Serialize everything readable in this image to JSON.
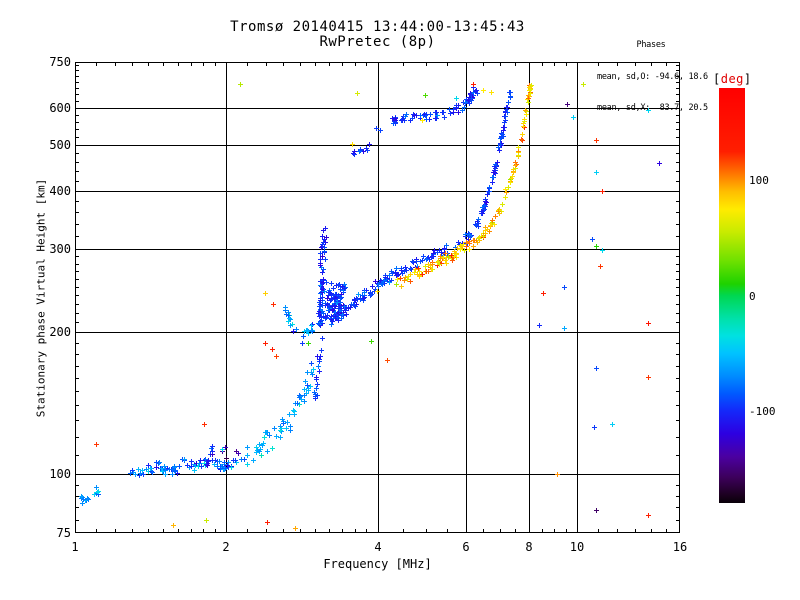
{
  "title": {
    "line1": "Tromsø 20140415 13:44:00-13:45:43",
    "line2": "RwPretec (8p)"
  },
  "annotation": {
    "header": "Phases",
    "line_o": "mean, sd,O: -94.6, 18.6",
    "line_x": "mean, sd,X:  83.7, 20.5"
  },
  "colorbar": {
    "bracket_open": "[",
    "unit": "deg",
    "bracket_close": "]",
    "unit_color": "#e00000",
    "vmax": 180,
    "vmin": -180,
    "ticks": [
      100,
      0,
      -100
    ]
  },
  "chart_data": {
    "type": "scatter",
    "title": "Tromsø 20140415 13:44:00-13:45:43 RwPretec (8p)",
    "xlabel": "Frequency [MHz]",
    "ylabel": "Stationary phase Virtual Height [km]",
    "x_axis": {
      "scale": "log",
      "range": [
        1,
        16
      ],
      "major_ticks": [
        1,
        2,
        4,
        6,
        8,
        10,
        16
      ],
      "minor_ticks": [
        1.1,
        1.2,
        1.3,
        1.4,
        1.5,
        1.6,
        1.7,
        1.8,
        1.9,
        2.2,
        2.4,
        2.6,
        2.8,
        3.0,
        3.2,
        3.4,
        3.6,
        3.8,
        4.5,
        5,
        5.5,
        6.5,
        7,
        7.5,
        8.5,
        9,
        9.5,
        11,
        12,
        13,
        14,
        15
      ],
      "gridlines": [
        2,
        4,
        6,
        8,
        10
      ]
    },
    "y_axis": {
      "scale": "log",
      "range": [
        75,
        750
      ],
      "major_ticks": [
        75,
        100,
        200,
        300,
        400,
        500,
        600,
        750
      ],
      "minor_ticks": [
        80,
        85,
        90,
        95,
        110,
        120,
        130,
        140,
        150,
        160,
        170,
        180,
        190,
        210,
        220,
        230,
        240,
        250,
        260,
        270,
        280,
        290,
        320,
        340,
        360,
        380,
        420,
        440,
        460,
        480,
        520,
        540,
        560,
        580,
        620,
        640,
        660,
        680,
        700,
        720,
        740
      ],
      "gridlines": [
        100,
        200,
        300,
        400,
        500,
        600
      ]
    },
    "colormap": [
      [
        180,
        255,
        0,
        0
      ],
      [
        125,
        255,
        30,
        0
      ],
      [
        105,
        255,
        120,
        0
      ],
      [
        90,
        255,
        190,
        0
      ],
      [
        75,
        255,
        235,
        0
      ],
      [
        55,
        200,
        235,
        0
      ],
      [
        30,
        110,
        225,
        0
      ],
      [
        10,
        30,
        210,
        0
      ],
      [
        0,
        0,
        215,
        80
      ],
      [
        -20,
        0,
        225,
        170
      ],
      [
        -35,
        0,
        225,
        225
      ],
      [
        -50,
        0,
        195,
        255
      ],
      [
        -70,
        0,
        140,
        255
      ],
      [
        -85,
        0,
        90,
        255
      ],
      [
        -100,
        20,
        40,
        250
      ],
      [
        -120,
        45,
        0,
        225
      ],
      [
        -140,
        75,
        0,
        160
      ],
      [
        -158,
        60,
        0,
        90
      ],
      [
        -172,
        30,
        0,
        35
      ],
      [
        -180,
        8,
        0,
        8
      ]
    ],
    "series": [
      {
        "name": "E-layer-left",
        "count": 16,
        "phase": -70,
        "sd": 22,
        "jf": 0.012,
        "jh": 0.03,
        "pts": [
          [
            1.02,
            87
          ],
          [
            1.05,
            90
          ],
          [
            1.09,
            92
          ],
          [
            1.13,
            91
          ]
        ]
      },
      {
        "name": "E-layer",
        "count": 95,
        "phase": -80,
        "sd": 24,
        "jf": 0.012,
        "jh": 0.022,
        "pts": [
          [
            1.28,
            99
          ],
          [
            1.36,
            102
          ],
          [
            1.46,
            104
          ],
          [
            1.55,
            101
          ],
          [
            1.63,
            106
          ],
          [
            1.73,
            104
          ],
          [
            1.82,
            107
          ],
          [
            1.92,
            104
          ],
          [
            2.02,
            105
          ],
          [
            2.12,
            107
          ]
        ]
      },
      {
        "name": "E-spikes",
        "count": 10,
        "phase": -115,
        "sd": 25,
        "jf": 0.006,
        "jh": 0.03,
        "pts": [
          [
            1.85,
            109
          ],
          [
            1.88,
            113
          ],
          [
            2.08,
            110
          ],
          [
            2.12,
            114
          ]
        ]
      },
      {
        "name": "E-F-rise",
        "count": 60,
        "phase": -62,
        "sd": 18,
        "jf": 0.014,
        "jh": 0.05,
        "pts": [
          [
            2.18,
            109
          ],
          [
            2.32,
            113
          ],
          [
            2.46,
            119
          ],
          [
            2.6,
            127
          ],
          [
            2.72,
            135
          ],
          [
            2.82,
            144
          ],
          [
            2.92,
            155
          ],
          [
            2.98,
            164
          ]
        ]
      },
      {
        "name": "rise-column",
        "count": 18,
        "phase": -95,
        "sd": 16,
        "jf": 0.007,
        "jh": 0.035,
        "pts": [
          [
            3.0,
            140
          ],
          [
            3.02,
            153
          ],
          [
            3.05,
            167
          ],
          [
            3.07,
            180
          ],
          [
            3.09,
            192
          ]
        ]
      },
      {
        "name": "cusp-arc",
        "count": 24,
        "phase": -60,
        "sd": 26,
        "jf": 0.008,
        "jh": 0.018,
        "pts": [
          [
            2.62,
            230
          ],
          [
            2.65,
            217
          ],
          [
            2.69,
            207
          ],
          [
            2.76,
            201
          ],
          [
            2.84,
            198
          ],
          [
            2.92,
            201
          ],
          [
            2.97,
            206
          ]
        ]
      },
      {
        "name": "cusp-spike",
        "count": 60,
        "phase": -96,
        "sd": 18,
        "jf": 0.012,
        "jh": 0.03,
        "pts": [
          [
            3.07,
            207
          ],
          [
            3.09,
            242
          ],
          [
            3.1,
            277
          ],
          [
            3.11,
            307
          ],
          [
            3.13,
            326
          ]
        ]
      },
      {
        "name": "cusp-blob",
        "count": 95,
        "phase": -95,
        "sd": 17,
        "jf": 0.02,
        "jh": 0.06,
        "pts": [
          [
            3.04,
            214
          ],
          [
            3.14,
            226
          ],
          [
            3.24,
            219
          ],
          [
            3.34,
            231
          ],
          [
            3.29,
            214
          ],
          [
            3.19,
            241
          ],
          [
            3.31,
            251
          ],
          [
            3.42,
            236
          ]
        ]
      },
      {
        "name": "F-trace-O",
        "count": 135,
        "phase": -95,
        "sd": 15,
        "jf": 0.011,
        "jh": 0.022,
        "pts": [
          [
            3.3,
            216
          ],
          [
            3.46,
            225
          ],
          [
            3.62,
            233
          ],
          [
            3.82,
            244
          ],
          [
            4.02,
            254
          ],
          [
            4.22,
            262
          ],
          [
            4.52,
            273
          ],
          [
            4.82,
            282
          ],
          [
            5.12,
            291
          ],
          [
            5.42,
            299
          ],
          [
            5.72,
            307
          ],
          [
            6.02,
            317
          ],
          [
            6.17,
            326
          ]
        ]
      },
      {
        "name": "F-asymptote-O",
        "count": 75,
        "phase": -95,
        "sd": 14,
        "jf": 0.005,
        "jh": 0.018,
        "pts": [
          [
            6.22,
            331
          ],
          [
            6.36,
            349
          ],
          [
            6.5,
            369
          ],
          [
            6.62,
            393
          ],
          [
            6.75,
            421
          ],
          [
            6.86,
            452
          ],
          [
            6.96,
            487
          ],
          [
            7.06,
            522
          ],
          [
            7.13,
            556
          ],
          [
            7.2,
            591
          ],
          [
            7.28,
            626
          ],
          [
            7.33,
            652
          ]
        ]
      },
      {
        "name": "F-trace-X",
        "count": 95,
        "phase": 84,
        "sd": 22,
        "jf": 0.011,
        "jh": 0.022,
        "pts": [
          [
            4.35,
            253
          ],
          [
            4.62,
            262
          ],
          [
            4.92,
            271
          ],
          [
            5.22,
            280
          ],
          [
            5.52,
            289
          ],
          [
            5.82,
            298
          ],
          [
            6.12,
            308
          ],
          [
            6.37,
            317
          ],
          [
            6.62,
            329
          ]
        ]
      },
      {
        "name": "F-asymptote-X",
        "count": 65,
        "phase": 84,
        "sd": 24,
        "jf": 0.005,
        "jh": 0.018,
        "pts": [
          [
            6.72,
            336
          ],
          [
            6.87,
            351
          ],
          [
            7.02,
            369
          ],
          [
            7.17,
            391
          ],
          [
            7.32,
            416
          ],
          [
            7.47,
            447
          ],
          [
            7.62,
            482
          ],
          [
            7.73,
            521
          ],
          [
            7.83,
            562
          ],
          [
            7.93,
            606
          ],
          [
            8.01,
            646
          ],
          [
            8.06,
            676
          ]
        ]
      },
      {
        "name": "second-hop",
        "count": 75,
        "phase": -95,
        "sd": 14,
        "jf": 0.011,
        "jh": 0.018,
        "pts": [
          [
            4.25,
            563
          ],
          [
            4.52,
            573
          ],
          [
            4.82,
            571
          ],
          [
            5.12,
            576
          ],
          [
            5.42,
            583
          ],
          [
            5.72,
            593
          ],
          [
            5.92,
            606
          ],
          [
            6.07,
            621
          ],
          [
            6.17,
            639
          ],
          [
            6.27,
            656
          ]
        ]
      },
      {
        "name": "hop-start",
        "count": 10,
        "phase": -95,
        "sd": 14,
        "jf": 0.013,
        "jh": 0.018,
        "pts": [
          [
            3.56,
            476
          ],
          [
            3.72,
            486
          ],
          [
            3.87,
            496
          ]
        ]
      }
    ],
    "noise_points": [
      [
        1.1,
        116,
        120
      ],
      [
        1.81,
        128,
        122
      ],
      [
        1.96,
        113,
        -40
      ],
      [
        1.57,
        78,
        92
      ],
      [
        1.82,
        80,
        55
      ],
      [
        2.41,
        79,
        128
      ],
      [
        2.74,
        77,
        95
      ],
      [
        2.39,
        190,
        125
      ],
      [
        2.47,
        184,
        130
      ],
      [
        2.51,
        178,
        118
      ],
      [
        2.83,
        190,
        -95
      ],
      [
        2.91,
        190,
        15
      ],
      [
        3.88,
        192,
        18
      ],
      [
        4.18,
        175,
        115
      ],
      [
        3.99,
        245,
        80
      ],
      [
        2.39,
        242,
        85
      ],
      [
        2.48,
        230,
        122
      ],
      [
        3.64,
        645,
        60
      ],
      [
        2.13,
        675,
        50
      ],
      [
        6.2,
        675,
        130
      ],
      [
        4.97,
        638,
        22
      ],
      [
        5.72,
        630,
        -40
      ],
      [
        6.5,
        655,
        75
      ],
      [
        6.72,
        647,
        78
      ],
      [
        3.98,
        542,
        -95
      ],
      [
        4.05,
        538,
        -92
      ],
      [
        3.56,
        502,
        80
      ],
      [
        4.9,
        565,
        75
      ],
      [
        9.55,
        610,
        -150
      ],
      [
        10.25,
        672,
        55
      ],
      [
        9.8,
        572,
        -45
      ],
      [
        10.9,
        513,
        120
      ],
      [
        13.8,
        592,
        -42
      ],
      [
        14.5,
        457,
        -120
      ],
      [
        10.9,
        438,
        -45
      ],
      [
        11.2,
        400,
        125
      ],
      [
        10.7,
        315,
        -90
      ],
      [
        10.9,
        305,
        12
      ],
      [
        11.2,
        299,
        -40
      ],
      [
        11.1,
        277,
        120
      ],
      [
        8.55,
        242,
        125
      ],
      [
        9.4,
        250,
        -90
      ],
      [
        8.4,
        207,
        -100
      ],
      [
        9.4,
        204,
        -60
      ],
      [
        13.8,
        209,
        145
      ],
      [
        10.9,
        168,
        -90
      ],
      [
        13.8,
        161,
        120
      ],
      [
        10.8,
        126,
        -95
      ],
      [
        11.7,
        128,
        -45
      ],
      [
        9.1,
        100,
        100
      ],
      [
        10.9,
        84,
        -155
      ],
      [
        13.8,
        82,
        125
      ]
    ]
  }
}
